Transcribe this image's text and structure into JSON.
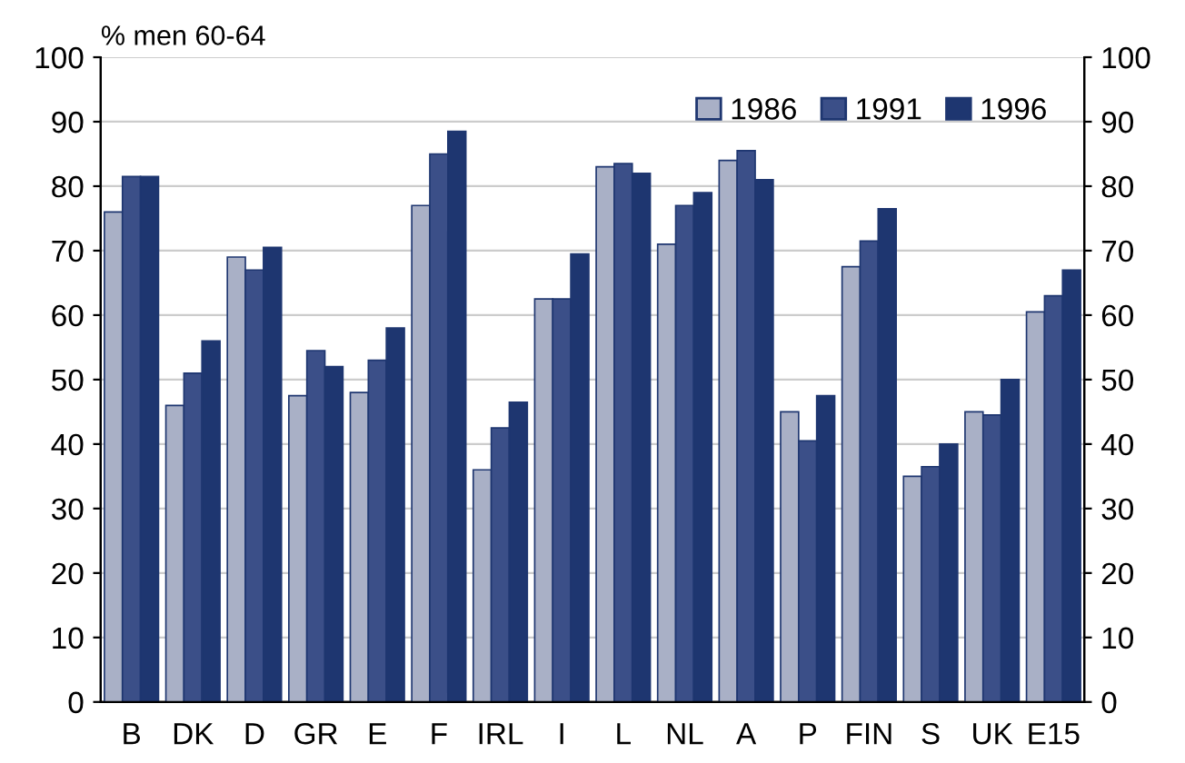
{
  "chart_data": {
    "type": "bar",
    "ylabel": "% men 60-64",
    "categories": [
      "B",
      "DK",
      "D",
      "GR",
      "E",
      "F",
      "IRL",
      "I",
      "L",
      "NL",
      "A",
      "P",
      "FIN",
      "S",
      "UK",
      "E15"
    ],
    "series": [
      {
        "name": "1986",
        "color": "#a9b0c6",
        "values": [
          76,
          46,
          69,
          47.5,
          48,
          77,
          36,
          62.5,
          83,
          71,
          84,
          45,
          67.5,
          35,
          45,
          60.5
        ]
      },
      {
        "name": "1991",
        "color": "#3b4f88",
        "values": [
          81.5,
          51,
          67,
          54.5,
          53,
          85,
          42.5,
          62.5,
          83.5,
          77,
          85.5,
          40.5,
          71.5,
          36.5,
          44.5,
          63
        ]
      },
      {
        "name": "1996",
        "color": "#1e3670",
        "values": [
          81.5,
          56,
          70.5,
          52,
          58,
          88.5,
          46.5,
          69.5,
          82,
          79,
          81,
          47.5,
          76.5,
          40,
          50,
          67
        ]
      }
    ],
    "ylim": [
      0,
      100
    ],
    "yticks": [
      0,
      10,
      20,
      30,
      40,
      50,
      60,
      70,
      80,
      90,
      100
    ],
    "y2lim": [
      0,
      100
    ],
    "y2ticks": [
      0,
      10,
      20,
      30,
      40,
      50,
      60,
      70,
      80,
      90,
      100
    ],
    "grid": "y",
    "legend": "top right"
  }
}
